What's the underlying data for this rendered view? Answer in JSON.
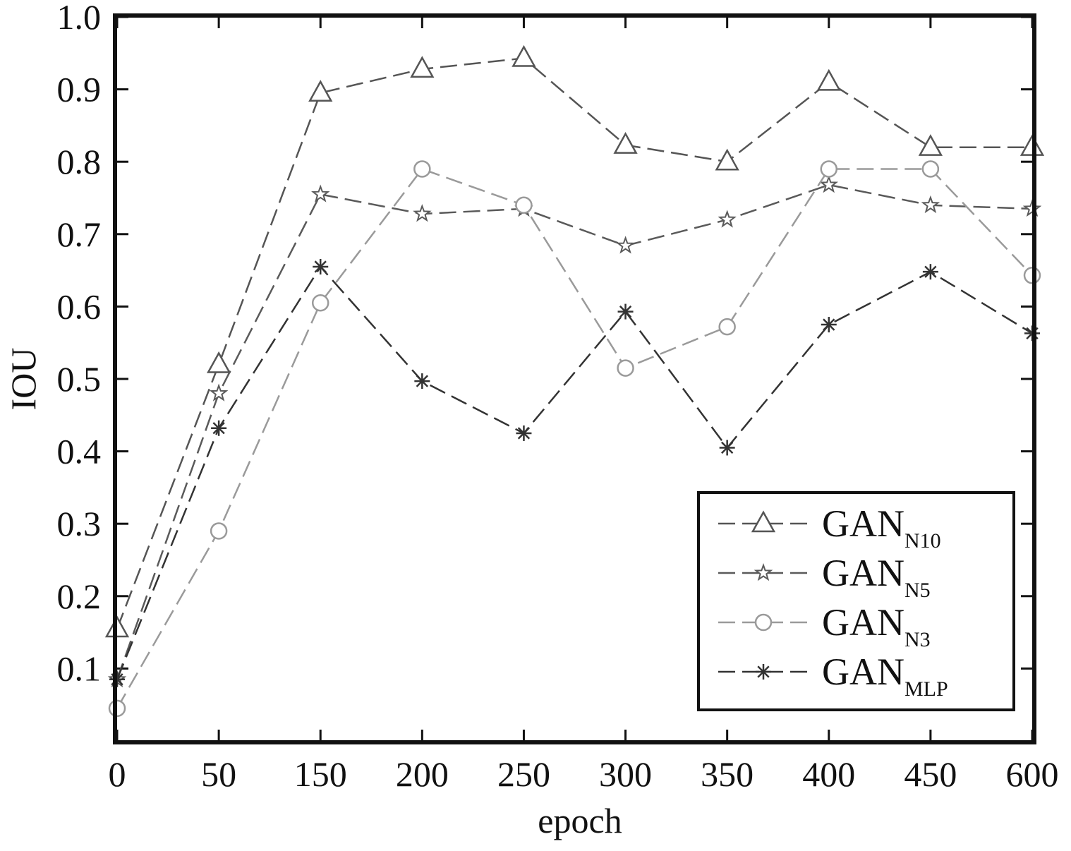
{
  "chart_data": {
    "type": "line",
    "title": "",
    "xlabel": "epoch",
    "ylabel": "IOU",
    "categories": [
      "0",
      "50",
      "150",
      "200",
      "250",
      "300",
      "350",
      "400",
      "450",
      "600"
    ],
    "ylim": [
      0.0,
      1.0
    ],
    "ytick_labels": [
      "0.1",
      "0.2",
      "0.3",
      "0.4",
      "0.5",
      "0.6",
      "0.7",
      "0.8",
      "0.9",
      "1.0"
    ],
    "grid": false,
    "legend_position": "bottom-right",
    "series": [
      {
        "name": "GAN",
        "sub": "N10",
        "marker": "triangle",
        "color": "#555555",
        "values": [
          0.155,
          0.52,
          0.895,
          0.928,
          0.943,
          0.823,
          0.8,
          0.91,
          0.82,
          0.82
        ]
      },
      {
        "name": "GAN",
        "sub": "N5",
        "marker": "star",
        "color": "#5a5a5a",
        "values": [
          0.085,
          0.48,
          0.755,
          0.728,
          0.735,
          0.684,
          0.72,
          0.768,
          0.74,
          0.735
        ]
      },
      {
        "name": "GAN",
        "sub": "N3",
        "marker": "circle",
        "color": "#9a9a9a",
        "values": [
          0.045,
          0.29,
          0.605,
          0.79,
          0.74,
          0.515,
          0.572,
          0.79,
          0.79,
          0.643
        ]
      },
      {
        "name": "GAN",
        "sub": "MLP",
        "marker": "asterisk",
        "color": "#333333",
        "values": [
          0.085,
          0.432,
          0.655,
          0.497,
          0.425,
          0.593,
          0.405,
          0.575,
          0.648,
          0.563
        ]
      }
    ]
  }
}
